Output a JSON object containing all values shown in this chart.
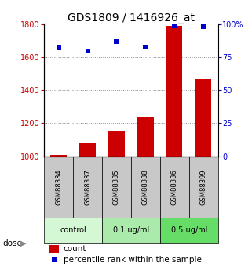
{
  "title": "GDS1809 / 1416926_at",
  "samples": [
    "GSM88334",
    "GSM88337",
    "GSM88335",
    "GSM88338",
    "GSM88336",
    "GSM88399"
  ],
  "bar_values": [
    1010,
    1080,
    1150,
    1240,
    1790,
    1470
  ],
  "dot_values": [
    82,
    80,
    87,
    83,
    99,
    98
  ],
  "ylim_left": [
    1000,
    1800
  ],
  "ylim_right": [
    0,
    100
  ],
  "yticks_left": [
    1000,
    1200,
    1400,
    1600,
    1800
  ],
  "yticks_right": [
    0,
    25,
    50,
    75,
    100
  ],
  "ytick_right_labels": [
    "0",
    "25",
    "50",
    "75",
    "100%"
  ],
  "bar_color": "#cc0000",
  "dot_color": "#0000cc",
  "bar_width": 0.55,
  "grid_color": "#888888",
  "label_count": "count",
  "label_percentile": "percentile rank within the sample",
  "dose_label": "dose",
  "background_color": "#ffffff",
  "sample_box_color": "#c8c8c8",
  "group_spans": [
    {
      "label": "control",
      "start": 0,
      "end": 2,
      "color": "#d4f7d4"
    },
    {
      "label": "0.1 ug/ml",
      "start": 2,
      "end": 4,
      "color": "#aaeaaa"
    },
    {
      "label": "0.5 ug/ml",
      "start": 4,
      "end": 6,
      "color": "#66dd66"
    }
  ],
  "title_fontsize": 10,
  "tick_fontsize": 7,
  "sample_fontsize": 6,
  "group_fontsize": 7,
  "legend_fontsize": 7.5
}
